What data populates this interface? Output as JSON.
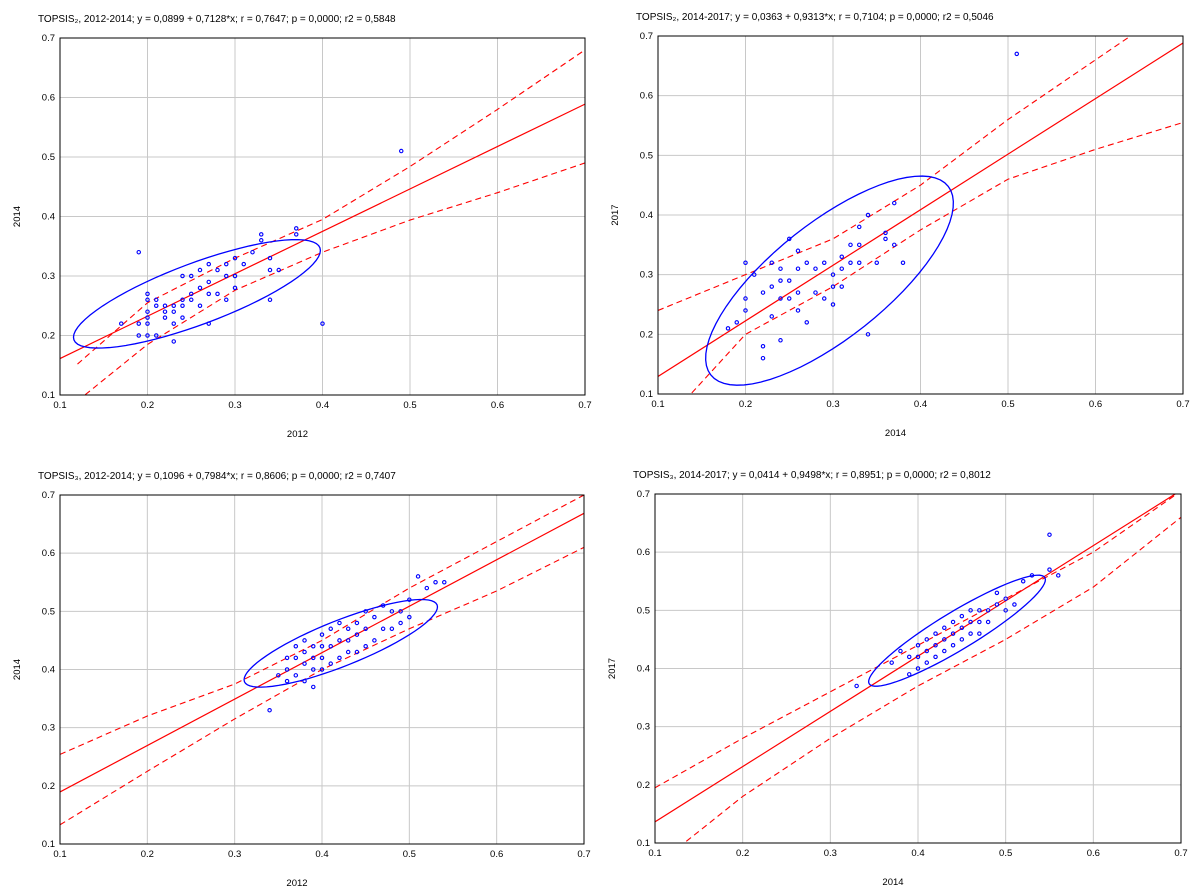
{
  "colors": {
    "regression": "#ff0000",
    "points": "#0000ff",
    "ellipse": "#0000ff",
    "grid": "#c8c8c8",
    "frame": "#000000"
  },
  "chart_data": [
    {
      "type": "scatter",
      "title": "TOPSIS₂, 2012-2014; y = 0,0899 + 0,7128*x;  r = 0,7647; p = 0,0000; r2 = 0,5848",
      "xlabel": "2012",
      "ylabel": "2014",
      "xlim": [
        0.1,
        0.7
      ],
      "ylim": [
        0.1,
        0.7
      ],
      "xticks": [
        "0.1",
        "0.2",
        "0.3",
        "0.4",
        "0.5",
        "0.6",
        "0.7"
      ],
      "yticks": [
        "0.1",
        "0.2",
        "0.3",
        "0.4",
        "0.5",
        "0.6",
        "0.7"
      ],
      "grid": true,
      "regression": {
        "intercept": 0.0899,
        "slope": 0.7128,
        "conf_band": [
          [
            0.12,
            0.09,
            0.152
          ],
          [
            0.2,
            0.185,
            0.255
          ],
          [
            0.3,
            0.276,
            0.33
          ],
          [
            0.4,
            0.34,
            0.395
          ],
          [
            0.5,
            0.394,
            0.484
          ],
          [
            0.6,
            0.44,
            0.58
          ],
          [
            0.7,
            0.49,
            0.68
          ]
        ]
      },
      "ellipse": {
        "cx": 0.2565,
        "cy": 0.27,
        "rx": 0.161,
        "ry": 0.048,
        "angle": -30.3
      },
      "x": [
        0.17,
        0.19,
        0.19,
        0.19,
        0.2,
        0.2,
        0.2,
        0.2,
        0.2,
        0.2,
        0.21,
        0.21,
        0.21,
        0.22,
        0.22,
        0.22,
        0.23,
        0.23,
        0.23,
        0.23,
        0.24,
        0.24,
        0.24,
        0.24,
        0.25,
        0.25,
        0.25,
        0.26,
        0.26,
        0.26,
        0.27,
        0.27,
        0.27,
        0.27,
        0.28,
        0.28,
        0.29,
        0.29,
        0.29,
        0.3,
        0.3,
        0.3,
        0.31,
        0.32,
        0.33,
        0.33,
        0.34,
        0.34,
        0.34,
        0.35,
        0.37,
        0.37,
        0.4,
        0.49
      ],
      "y": [
        0.22,
        0.34,
        0.22,
        0.2,
        0.27,
        0.26,
        0.24,
        0.23,
        0.22,
        0.2,
        0.26,
        0.25,
        0.2,
        0.25,
        0.24,
        0.23,
        0.25,
        0.24,
        0.22,
        0.19,
        0.3,
        0.26,
        0.25,
        0.23,
        0.3,
        0.27,
        0.26,
        0.31,
        0.28,
        0.25,
        0.32,
        0.29,
        0.27,
        0.22,
        0.31,
        0.27,
        0.32,
        0.3,
        0.26,
        0.33,
        0.3,
        0.28,
        0.32,
        0.34,
        0.37,
        0.36,
        0.33,
        0.31,
        0.26,
        0.31,
        0.38,
        0.37,
        0.22,
        0.51
      ]
    },
    {
      "type": "scatter",
      "title": "TOPSIS₂, 2014-2017; y = 0,0363 + 0,9313*x;  r = 0,7104; p = 0,0000; r2 = 0,5046",
      "xlabel": "2014",
      "ylabel": "2017",
      "xlim": [
        0.1,
        0.7
      ],
      "ylim": [
        0.1,
        0.7
      ],
      "xticks": [
        "0.1",
        "0.2",
        "0.3",
        "0.4",
        "0.5",
        "0.6",
        "0.7"
      ],
      "yticks": [
        "0.1",
        "0.2",
        "0.3",
        "0.4",
        "0.5",
        "0.6",
        "0.7"
      ],
      "grid": true,
      "regression": {
        "intercept": 0.0363,
        "slope": 0.9313,
        "conf_band": [
          [
            0.1,
            0.04,
            0.24
          ],
          [
            0.2,
            0.2,
            0.3
          ],
          [
            0.3,
            0.28,
            0.36
          ],
          [
            0.4,
            0.375,
            0.45
          ],
          [
            0.5,
            0.46,
            0.56
          ],
          [
            0.6,
            0.51,
            0.66
          ],
          [
            0.7,
            0.555,
            0.76
          ]
        ]
      },
      "ellipse": {
        "cx": 0.296,
        "cy": 0.29,
        "rx": 0.211,
        "ry": 0.079,
        "angle": -53.1
      },
      "x": [
        0.18,
        0.19,
        0.2,
        0.2,
        0.2,
        0.21,
        0.22,
        0.22,
        0.22,
        0.23,
        0.23,
        0.23,
        0.24,
        0.24,
        0.24,
        0.24,
        0.25,
        0.25,
        0.25,
        0.26,
        0.26,
        0.26,
        0.26,
        0.27,
        0.27,
        0.28,
        0.28,
        0.29,
        0.29,
        0.3,
        0.3,
        0.3,
        0.31,
        0.31,
        0.31,
        0.32,
        0.32,
        0.33,
        0.33,
        0.33,
        0.34,
        0.34,
        0.35,
        0.36,
        0.36,
        0.37,
        0.37,
        0.38,
        0.51
      ],
      "y": [
        0.21,
        0.22,
        0.32,
        0.26,
        0.24,
        0.3,
        0.27,
        0.18,
        0.16,
        0.32,
        0.28,
        0.23,
        0.31,
        0.29,
        0.26,
        0.19,
        0.36,
        0.29,
        0.26,
        0.34,
        0.31,
        0.27,
        0.24,
        0.32,
        0.22,
        0.31,
        0.27,
        0.32,
        0.26,
        0.3,
        0.28,
        0.25,
        0.33,
        0.31,
        0.28,
        0.35,
        0.32,
        0.38,
        0.35,
        0.32,
        0.4,
        0.2,
        0.32,
        0.37,
        0.36,
        0.42,
        0.35,
        0.32,
        0.67
      ]
    },
    {
      "type": "scatter",
      "title": "TOPSIS₃, 2012-2014; y = 0,1096 + 0,7984*x;  r = 0,8606; p = 0,0000; r2 = 0,7407",
      "xlabel": "2012",
      "ylabel": "2014",
      "xlim": [
        0.1,
        0.7
      ],
      "ylim": [
        0.1,
        0.7
      ],
      "xticks": [
        "0.1",
        "0.2",
        "0.3",
        "0.4",
        "0.5",
        "0.6",
        "0.7"
      ],
      "yticks": [
        "0.1",
        "0.2",
        "0.3",
        "0.4",
        "0.5",
        "0.6",
        "0.7"
      ],
      "grid": true,
      "regression": {
        "intercept": 0.1096,
        "slope": 0.7984,
        "conf_band": [
          [
            0.1,
            0.133,
            0.254
          ],
          [
            0.2,
            0.225,
            0.32
          ],
          [
            0.3,
            0.315,
            0.375
          ],
          [
            0.4,
            0.4,
            0.45
          ],
          [
            0.5,
            0.47,
            0.54
          ],
          [
            0.6,
            0.535,
            0.62
          ],
          [
            0.7,
            0.61,
            0.7
          ]
        ]
      },
      "ellipse": {
        "cx": 0.4215,
        "cy": 0.445,
        "rx": 0.129,
        "ry": 0.036,
        "angle": -32.3
      },
      "x": [
        0.34,
        0.35,
        0.36,
        0.36,
        0.36,
        0.37,
        0.37,
        0.37,
        0.38,
        0.38,
        0.38,
        0.38,
        0.39,
        0.39,
        0.39,
        0.39,
        0.4,
        0.4,
        0.4,
        0.4,
        0.41,
        0.41,
        0.41,
        0.42,
        0.42,
        0.42,
        0.43,
        0.43,
        0.43,
        0.44,
        0.44,
        0.44,
        0.45,
        0.45,
        0.45,
        0.46,
        0.46,
        0.47,
        0.47,
        0.48,
        0.48,
        0.49,
        0.49,
        0.5,
        0.5,
        0.51,
        0.52,
        0.53,
        0.54
      ],
      "y": [
        0.33,
        0.39,
        0.42,
        0.4,
        0.38,
        0.44,
        0.42,
        0.39,
        0.45,
        0.43,
        0.41,
        0.38,
        0.44,
        0.42,
        0.4,
        0.37,
        0.46,
        0.44,
        0.42,
        0.4,
        0.47,
        0.44,
        0.41,
        0.48,
        0.45,
        0.42,
        0.47,
        0.45,
        0.43,
        0.48,
        0.46,
        0.43,
        0.5,
        0.47,
        0.44,
        0.49,
        0.45,
        0.51,
        0.47,
        0.5,
        0.47,
        0.5,
        0.48,
        0.52,
        0.49,
        0.56,
        0.54,
        0.55,
        0.55
      ]
    },
    {
      "type": "scatter",
      "title": "TOPSIS₃, 2014-2017; y = 0,0414 + 0,9498*x;  r = 0,8951; p = 0,0000; r2 = 0,8012",
      "xlabel": "2014",
      "ylabel": "2017",
      "xlim": [
        0.1,
        0.7
      ],
      "ylim": [
        0.1,
        0.7
      ],
      "xticks": [
        "0.1",
        "0.2",
        "0.3",
        "0.4",
        "0.5",
        "0.6",
        "0.7"
      ],
      "yticks": [
        "0.1",
        "0.2",
        "0.3",
        "0.4",
        "0.5",
        "0.6",
        "0.7"
      ],
      "grid": true,
      "regression": {
        "intercept": 0.0414,
        "slope": 0.9498,
        "conf_band": [
          [
            0.1,
            0.06,
            0.195
          ],
          [
            0.2,
            0.18,
            0.28
          ],
          [
            0.3,
            0.28,
            0.36
          ],
          [
            0.4,
            0.37,
            0.44
          ],
          [
            0.5,
            0.45,
            0.52
          ],
          [
            0.6,
            0.54,
            0.6
          ],
          [
            0.7,
            0.66,
            0.705
          ]
        ]
      },
      "ellipse": {
        "cx": 0.4445,
        "cy": 0.465,
        "rx": 0.136,
        "ry": 0.028,
        "angle": -43.3
      },
      "x": [
        0.33,
        0.37,
        0.38,
        0.39,
        0.39,
        0.4,
        0.4,
        0.4,
        0.41,
        0.41,
        0.41,
        0.42,
        0.42,
        0.42,
        0.43,
        0.43,
        0.43,
        0.44,
        0.44,
        0.44,
        0.45,
        0.45,
        0.45,
        0.46,
        0.46,
        0.46,
        0.47,
        0.47,
        0.47,
        0.48,
        0.48,
        0.49,
        0.49,
        0.5,
        0.5,
        0.51,
        0.52,
        0.53,
        0.55,
        0.55,
        0.56
      ],
      "y": [
        0.37,
        0.41,
        0.43,
        0.42,
        0.39,
        0.44,
        0.42,
        0.4,
        0.45,
        0.43,
        0.41,
        0.46,
        0.44,
        0.42,
        0.47,
        0.45,
        0.43,
        0.48,
        0.46,
        0.44,
        0.49,
        0.47,
        0.45,
        0.5,
        0.48,
        0.46,
        0.5,
        0.48,
        0.46,
        0.5,
        0.48,
        0.53,
        0.51,
        0.52,
        0.5,
        0.51,
        0.55,
        0.56,
        0.63,
        0.57,
        0.56
      ]
    }
  ]
}
